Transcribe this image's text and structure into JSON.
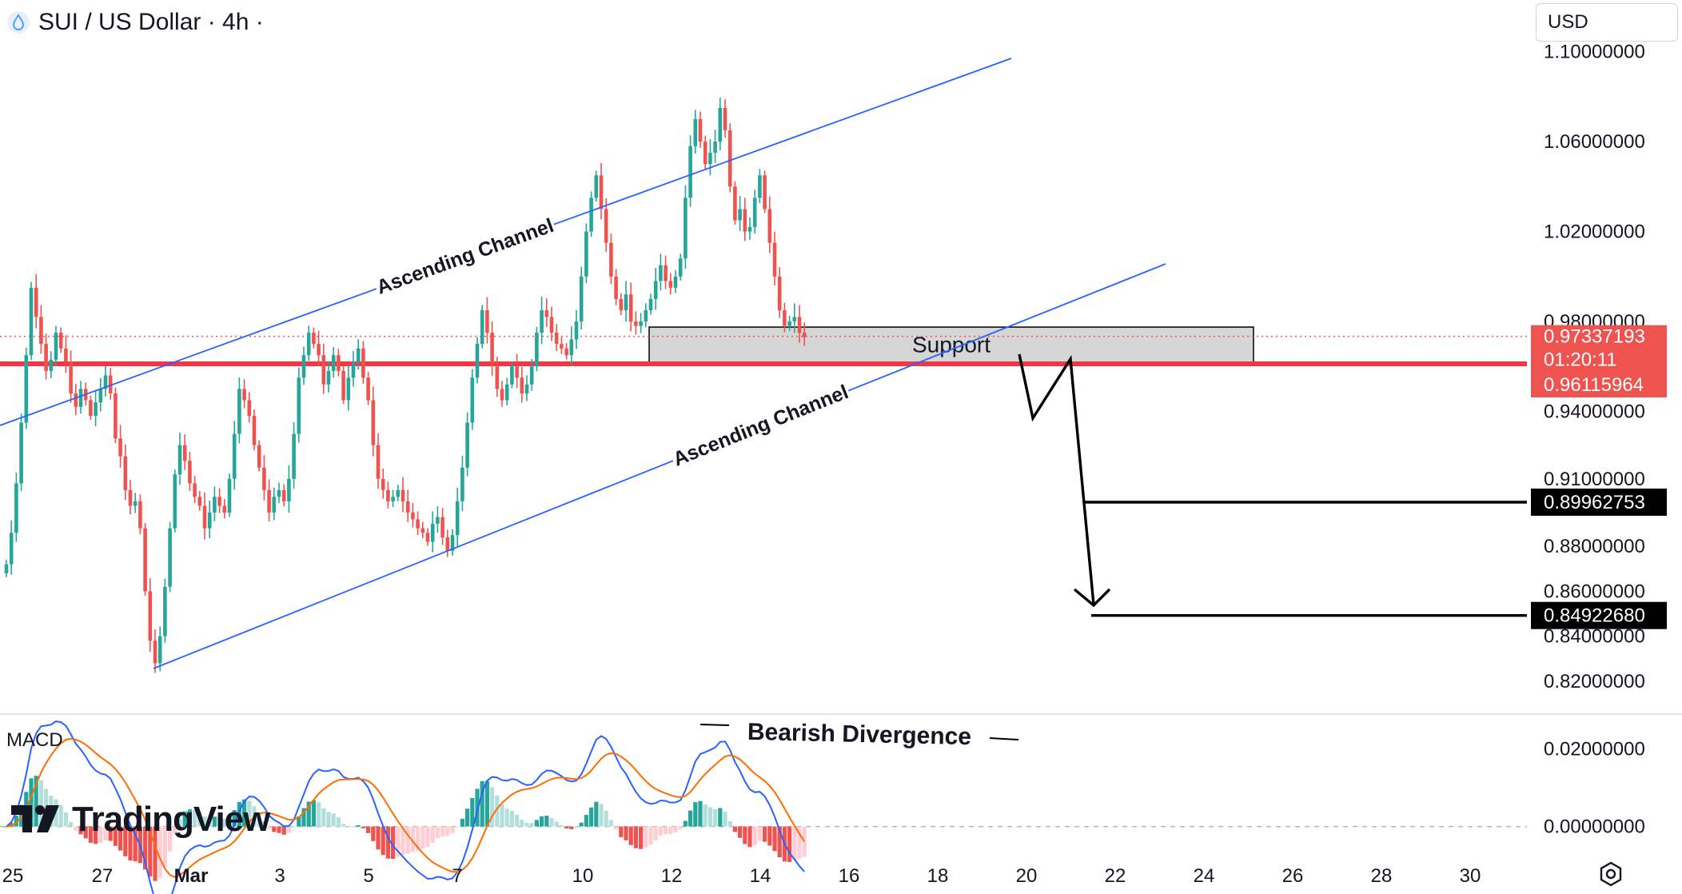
{
  "header": {
    "title": "SUI / US Dollar · 4h ·"
  },
  "currency_selector": {
    "value": "USD"
  },
  "colors": {
    "up": "#26a69a",
    "down": "#ef5350",
    "channel": "#2962ff",
    "support_line": "#f23645",
    "support_fill": "#d6d6d6",
    "target": "#000000"
  },
  "chart_data": [
    {
      "type": "candlestick",
      "title": "SUI / US Dollar · 4h ·",
      "ylim": [
        0.81,
        1.118
      ],
      "y_ticks": [
        1.1,
        1.06,
        1.02,
        0.98,
        0.94,
        0.91,
        0.88,
        0.86,
        0.84,
        0.82
      ],
      "y_tick_labels": [
        "1.10000000",
        "1.06000000",
        "1.02000000",
        "0.98000000",
        "0.94000000",
        "0.91000000",
        "0.88000000",
        "0.86000000",
        "0.84000000",
        "0.82000000"
      ],
      "x_tick_labels": [
        "25",
        "27",
        "Mar",
        "3",
        "5",
        "7",
        "10",
        "12",
        "14",
        "16",
        "18",
        "20",
        "22",
        "24",
        "26",
        "28",
        "30"
      ],
      "price_labels": [
        {
          "text": "0.97337193",
          "sub": "01:20:11",
          "value": 0.97337193,
          "style": "current"
        },
        {
          "text": "0.96115964",
          "value": 0.96115964,
          "style": "support"
        },
        {
          "text": "0.89962753",
          "value": 0.89962753,
          "style": "target"
        },
        {
          "text": "0.84922680",
          "value": 0.8492268,
          "style": "target"
        }
      ],
      "support_level": 0.96115964,
      "current_price": 0.97337193,
      "support_zone": {
        "top": 0.9775,
        "bottom": 0.9612,
        "label": "Support"
      },
      "annotations": [
        {
          "text": "Ascending Channel",
          "placement": "upper channel line"
        },
        {
          "text": "Ascending Channel",
          "placement": "lower channel line"
        }
      ],
      "targets": [
        0.89962753,
        0.8492268
      ],
      "closes": [
        0.872,
        0.886,
        0.908,
        0.935,
        0.965,
        0.995,
        0.982,
        0.97,
        0.958,
        0.963,
        0.975,
        0.968,
        0.962,
        0.948,
        0.942,
        0.95,
        0.945,
        0.938,
        0.944,
        0.95,
        0.956,
        0.948,
        0.928,
        0.92,
        0.905,
        0.898,
        0.9,
        0.888,
        0.86,
        0.838,
        0.828,
        0.84,
        0.862,
        0.888,
        0.912,
        0.925,
        0.918,
        0.908,
        0.902,
        0.898,
        0.888,
        0.895,
        0.902,
        0.898,
        0.895,
        0.91,
        0.93,
        0.95,
        0.945,
        0.938,
        0.925,
        0.915,
        0.905,
        0.895,
        0.902,
        0.905,
        0.9,
        0.91,
        0.93,
        0.955,
        0.965,
        0.975,
        0.97,
        0.965,
        0.952,
        0.958,
        0.965,
        0.958,
        0.945,
        0.955,
        0.962,
        0.968,
        0.955,
        0.945,
        0.925,
        0.91,
        0.905,
        0.9,
        0.902,
        0.905,
        0.9,
        0.895,
        0.892,
        0.888,
        0.886,
        0.882,
        0.89,
        0.893,
        0.884,
        0.878,
        0.885,
        0.9,
        0.915,
        0.935,
        0.955,
        0.97,
        0.985,
        0.975,
        0.96,
        0.95,
        0.945,
        0.952,
        0.96,
        0.955,
        0.948,
        0.952,
        0.96,
        0.975,
        0.985,
        0.982,
        0.975,
        0.97,
        0.968,
        0.965,
        0.972,
        0.98,
        1.0,
        1.02,
        1.035,
        1.045,
        1.03,
        1.015,
        1.0,
        0.99,
        0.985,
        0.992,
        0.98,
        0.978,
        0.98,
        0.985,
        0.99,
        0.998,
        1.005,
        0.998,
        0.995,
        1.0,
        1.008,
        1.035,
        1.058,
        1.07,
        1.06,
        1.05,
        1.055,
        1.06,
        1.075,
        1.065,
        1.04,
        1.025,
        1.03,
        1.02,
        1.022,
        1.035,
        1.045,
        1.03,
        1.015,
        1.0,
        0.985,
        0.978,
        0.98,
        0.982,
        0.975,
        0.973
      ]
    },
    {
      "type": "macd",
      "label": "MACD",
      "ylim": [
        -0.0075,
        0.0275
      ],
      "y_ticks": [
        0.02,
        0.0
      ],
      "y_tick_labels": [
        "0.02000000",
        "0.00000000"
      ],
      "annotation": "Bearish Divergence"
    }
  ],
  "watermark": {
    "text": "TradingView"
  }
}
